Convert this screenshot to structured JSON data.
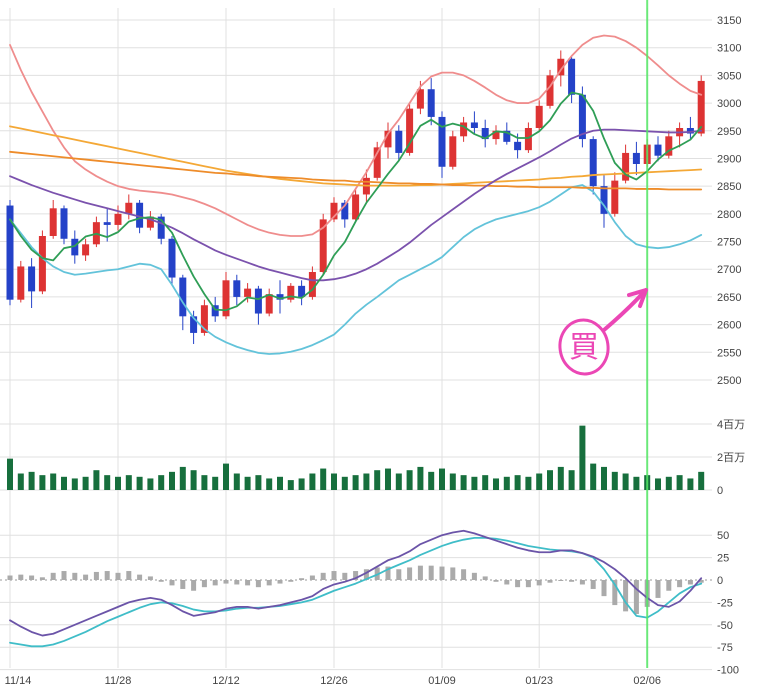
{
  "chart": {
    "axis_text_color": "#444444",
    "grid_color": "#e0e0e0",
    "zero_line_color": "#999999",
    "background": "#ffffff"
  },
  "chart_data": {
    "type": "candlestick",
    "price_axis": {
      "min": 2500,
      "max": 3150,
      "step": 50,
      "tick_labels": [
        "3150",
        "3100",
        "3050",
        "3000",
        "2950",
        "2900",
        "2850",
        "2800",
        "2750",
        "2700",
        "2650",
        "2600",
        "2550",
        "2500"
      ]
    },
    "x_labels": [
      {
        "i": 0,
        "t": "11/14"
      },
      {
        "i": 10,
        "t": "11/28"
      },
      {
        "i": 20,
        "t": "12/12"
      },
      {
        "i": 30,
        "t": "12/26"
      },
      {
        "i": 40,
        "t": "01/09"
      },
      {
        "i": 49,
        "t": "01/23"
      },
      {
        "i": 59,
        "t": "02/06"
      }
    ],
    "candles": {
      "up_color": "#dd3333",
      "down_color": "#2442c8",
      "open": [
        2815,
        2645,
        2705,
        2660,
        2760,
        2810,
        2755,
        2725,
        2745,
        2785,
        2780,
        2800,
        2820,
        2775,
        2795,
        2755,
        2685,
        2615,
        2585,
        2635,
        2615,
        2680,
        2650,
        2665,
        2620,
        2655,
        2645,
        2670,
        2650,
        2695,
        2790,
        2820,
        2790,
        2835,
        2865,
        2920,
        2950,
        2910,
        2990,
        3025,
        2975,
        2885,
        2940,
        2965,
        2955,
        2935,
        2950,
        2930,
        2915,
        2955,
        2995,
        3050,
        3080,
        3015,
        2935,
        2850,
        2800,
        2860,
        2910,
        2890,
        2925,
        2905,
        2940,
        2955,
        2945
      ],
      "high": [
        2825,
        2715,
        2720,
        2770,
        2825,
        2815,
        2770,
        2755,
        2795,
        2810,
        2815,
        2835,
        2825,
        2805,
        2800,
        2760,
        2690,
        2625,
        2645,
        2650,
        2695,
        2690,
        2675,
        2670,
        2665,
        2680,
        2675,
        2680,
        2705,
        2800,
        2830,
        2825,
        2845,
        2880,
        2930,
        2965,
        2960,
        3000,
        3040,
        3045,
        2985,
        2950,
        2975,
        2985,
        2970,
        2960,
        2965,
        2945,
        2965,
        3005,
        3060,
        3095,
        3085,
        3030,
        2940,
        2870,
        2875,
        2925,
        2930,
        2935,
        2940,
        2950,
        2965,
        2975,
        3050
      ],
      "low": [
        2635,
        2640,
        2630,
        2655,
        2755,
        2745,
        2710,
        2715,
        2740,
        2750,
        2770,
        2790,
        2765,
        2770,
        2745,
        2670,
        2590,
        2565,
        2580,
        2605,
        2610,
        2635,
        2640,
        2600,
        2615,
        2620,
        2640,
        2635,
        2645,
        2690,
        2785,
        2775,
        2785,
        2820,
        2860,
        2900,
        2895,
        2905,
        2980,
        2960,
        2865,
        2880,
        2930,
        2945,
        2920,
        2925,
        2925,
        2900,
        2910,
        2950,
        2990,
        3030,
        3000,
        2920,
        2835,
        2775,
        2795,
        2855,
        2870,
        2885,
        2895,
        2900,
        2920,
        2935,
        2940
      ],
      "close": [
        2645,
        2705,
        2660,
        2760,
        2810,
        2755,
        2725,
        2745,
        2785,
        2780,
        2800,
        2820,
        2775,
        2795,
        2755,
        2685,
        2615,
        2585,
        2635,
        2615,
        2680,
        2650,
        2665,
        2620,
        2655,
        2645,
        2670,
        2650,
        2695,
        2790,
        2820,
        2790,
        2835,
        2865,
        2920,
        2950,
        2910,
        2990,
        3025,
        2975,
        2885,
        2940,
        2965,
        2955,
        2935,
        2950,
        2930,
        2915,
        2955,
        2995,
        3050,
        3080,
        3015,
        2935,
        2850,
        2800,
        2860,
        2910,
        2890,
        2925,
        2905,
        2940,
        2955,
        2945,
        3040
      ]
    },
    "overlays": [
      {
        "name": "upper-band",
        "color": "#ef8d8d",
        "values": [
          3105,
          3060,
          3020,
          2985,
          2950,
          2920,
          2895,
          2880,
          2868,
          2858,
          2850,
          2845,
          2842,
          2840,
          2838,
          2835,
          2830,
          2825,
          2818,
          2810,
          2800,
          2790,
          2780,
          2772,
          2766,
          2762,
          2760,
          2760,
          2763,
          2775,
          2795,
          2815,
          2845,
          2875,
          2910,
          2945,
          2970,
          3000,
          3030,
          3048,
          3055,
          3055,
          3050,
          3040,
          3028,
          3015,
          3005,
          3000,
          3000,
          3008,
          3030,
          3060,
          3085,
          3105,
          3118,
          3122,
          3120,
          3112,
          3100,
          3085,
          3068,
          3050,
          3035,
          3022,
          3015
        ]
      },
      {
        "name": "lower-band",
        "color": "#63c3da",
        "values": [
          2790,
          2765,
          2740,
          2720,
          2705,
          2695,
          2690,
          2692,
          2695,
          2698,
          2700,
          2705,
          2710,
          2708,
          2700,
          2672,
          2640,
          2612,
          2592,
          2578,
          2568,
          2560,
          2554,
          2549,
          2547,
          2548,
          2551,
          2556,
          2563,
          2572,
          2582,
          2600,
          2620,
          2636,
          2650,
          2665,
          2680,
          2690,
          2700,
          2710,
          2722,
          2740,
          2758,
          2772,
          2782,
          2790,
          2795,
          2800,
          2805,
          2812,
          2822,
          2835,
          2848,
          2852,
          2840,
          2815,
          2785,
          2760,
          2745,
          2740,
          2738,
          2740,
          2745,
          2752,
          2762
        ]
      },
      {
        "name": "ma-long-1",
        "color": "#f4a836",
        "values": [
          2958,
          2954,
          2950,
          2946,
          2942,
          2938,
          2934,
          2930,
          2926,
          2922,
          2918,
          2914,
          2910,
          2906,
          2902,
          2898,
          2894,
          2890,
          2886,
          2882,
          2878,
          2875,
          2872,
          2869,
          2866,
          2863,
          2861,
          2859,
          2857,
          2855,
          2854,
          2853,
          2852,
          2851,
          2851,
          2851,
          2851,
          2851,
          2852,
          2852,
          2853,
          2854,
          2855,
          2856,
          2857,
          2858,
          2859,
          2860,
          2861,
          2862,
          2864,
          2865,
          2867,
          2868,
          2870,
          2871,
          2872,
          2873,
          2874,
          2875,
          2876,
          2877,
          2878,
          2879,
          2880
        ]
      },
      {
        "name": "ma-long-2",
        "color": "#ee8c2a",
        "values": [
          2912,
          2910,
          2908,
          2906,
          2904,
          2902,
          2900,
          2898,
          2896,
          2894,
          2892,
          2890,
          2888,
          2886,
          2884,
          2882,
          2880,
          2878,
          2876,
          2874,
          2873,
          2871,
          2870,
          2868,
          2867,
          2866,
          2865,
          2864,
          2862,
          2861,
          2860,
          2860,
          2858,
          2858,
          2857,
          2856,
          2855,
          2855,
          2854,
          2854,
          2853,
          2852,
          2852,
          2851,
          2851,
          2850,
          2850,
          2849,
          2849,
          2848,
          2848,
          2848,
          2848,
          2847,
          2847,
          2846,
          2846,
          2846,
          2845,
          2845,
          2845,
          2844,
          2844,
          2844,
          2844
        ]
      },
      {
        "name": "ma-mid",
        "color": "#7b52ad",
        "values": [
          2868,
          2860,
          2852,
          2845,
          2838,
          2832,
          2826,
          2820,
          2815,
          2810,
          2805,
          2800,
          2795,
          2790,
          2783,
          2775,
          2765,
          2754,
          2744,
          2734,
          2726,
          2719,
          2712,
          2705,
          2699,
          2694,
          2689,
          2684,
          2680,
          2680,
          2682,
          2686,
          2692,
          2700,
          2710,
          2722,
          2734,
          2748,
          2764,
          2780,
          2794,
          2808,
          2822,
          2836,
          2849,
          2861,
          2872,
          2882,
          2892,
          2902,
          2913,
          2925,
          2936,
          2944,
          2950,
          2952,
          2952,
          2951,
          2950,
          2949,
          2948,
          2947,
          2947,
          2948,
          2950
        ]
      },
      {
        "name": "ma-short",
        "color": "#2f9e56",
        "values": [
          2790,
          2760,
          2735,
          2720,
          2716,
          2738,
          2742,
          2759,
          2764,
          2758,
          2767,
          2786,
          2792,
          2794,
          2789,
          2766,
          2725,
          2687,
          2655,
          2627,
          2626,
          2633,
          2649,
          2646,
          2654,
          2647,
          2651,
          2648,
          2663,
          2690,
          2725,
          2749,
          2786,
          2820,
          2846,
          2872,
          2896,
          2927,
          2959,
          2970,
          2957,
          2963,
          2958,
          2944,
          2936,
          2949,
          2947,
          2937,
          2937,
          2949,
          2969,
          2999,
          3019,
          3015,
          2986,
          2936,
          2892,
          2871,
          2862,
          2877,
          2898,
          2914,
          2923,
          2934,
          2957
        ]
      }
    ],
    "volume": {
      "color": "#176f3d",
      "unit": "百万",
      "ticks": [
        {
          "value": 4,
          "label": "4百万"
        },
        {
          "value": 2,
          "label": "2百万"
        },
        {
          "value": 0,
          "label": "0"
        }
      ],
      "values": [
        1.9,
        1.0,
        1.1,
        0.9,
        1.0,
        0.8,
        0.7,
        0.8,
        1.2,
        0.9,
        0.8,
        0.9,
        0.8,
        0.7,
        0.9,
        1.1,
        1.4,
        1.2,
        0.9,
        0.8,
        1.6,
        1.0,
        0.8,
        0.9,
        0.7,
        0.8,
        0.6,
        0.7,
        1.0,
        1.3,
        1.0,
        0.8,
        0.9,
        1.0,
        1.2,
        1.3,
        1.0,
        1.2,
        1.4,
        1.1,
        1.3,
        1.0,
        0.9,
        0.8,
        0.9,
        0.7,
        0.8,
        0.9,
        0.8,
        1.0,
        1.2,
        1.4,
        1.2,
        3.9,
        1.6,
        1.4,
        1.1,
        1.0,
        0.8,
        0.9,
        0.7,
        0.8,
        0.9,
        0.7,
        1.1
      ]
    },
    "oscillator": {
      "ticks": [
        50,
        25,
        0,
        -25,
        -50,
        -75,
        -100
      ],
      "histogram": {
        "color": "#aaaaaa",
        "values": [
          5,
          6,
          5,
          3,
          8,
          10,
          8,
          6,
          9,
          10,
          8,
          10,
          6,
          4,
          -2,
          -6,
          -10,
          -12,
          -8,
          -6,
          -4,
          -5,
          -6,
          -8,
          -6,
          -4,
          -2,
          2,
          5,
          8,
          10,
          8,
          10,
          12,
          14,
          15,
          12,
          14,
          16,
          16,
          15,
          14,
          12,
          8,
          4,
          -2,
          -5,
          -8,
          -8,
          -6,
          -3,
          0,
          -2,
          -5,
          -10,
          -18,
          -28,
          -35,
          -38,
          -30,
          -20,
          -12,
          -8,
          -5,
          -3
        ]
      },
      "line1": {
        "color": "#6b54a8",
        "values": [
          -45,
          -52,
          -58,
          -62,
          -60,
          -55,
          -50,
          -45,
          -40,
          -35,
          -30,
          -25,
          -22,
          -20,
          -22,
          -28,
          -35,
          -40,
          -38,
          -36,
          -32,
          -30,
          -30,
          -32,
          -30,
          -28,
          -25,
          -22,
          -18,
          -10,
          -5,
          -2,
          2,
          8,
          15,
          22,
          26,
          32,
          40,
          45,
          50,
          53,
          55,
          52,
          48,
          44,
          40,
          36,
          33,
          31,
          31,
          33,
          33,
          30,
          26,
          20,
          12,
          2,
          -10,
          -20,
          -28,
          -30,
          -24,
          -12,
          2
        ]
      },
      "line2": {
        "color": "#3fbdc8",
        "values": [
          -70,
          -72,
          -74,
          -74,
          -72,
          -68,
          -63,
          -58,
          -52,
          -46,
          -41,
          -36,
          -31,
          -27,
          -25,
          -26,
          -29,
          -33,
          -35,
          -35,
          -34,
          -32,
          -31,
          -31,
          -30,
          -29,
          -27,
          -25,
          -22,
          -17,
          -12,
          -8,
          -4,
          1,
          6,
          12,
          17,
          22,
          28,
          33,
          38,
          42,
          45,
          47,
          47,
          46,
          44,
          41,
          38,
          36,
          34,
          33,
          32,
          30,
          25,
          12,
          -5,
          -25,
          -40,
          -42,
          -35,
          -25,
          -15,
          -8,
          -4
        ]
      }
    },
    "vertical_cursor": {
      "index": 59,
      "date": "02/06",
      "color": "#55e866"
    },
    "annotation": {
      "text": "買",
      "color": "#eb47b5"
    }
  }
}
